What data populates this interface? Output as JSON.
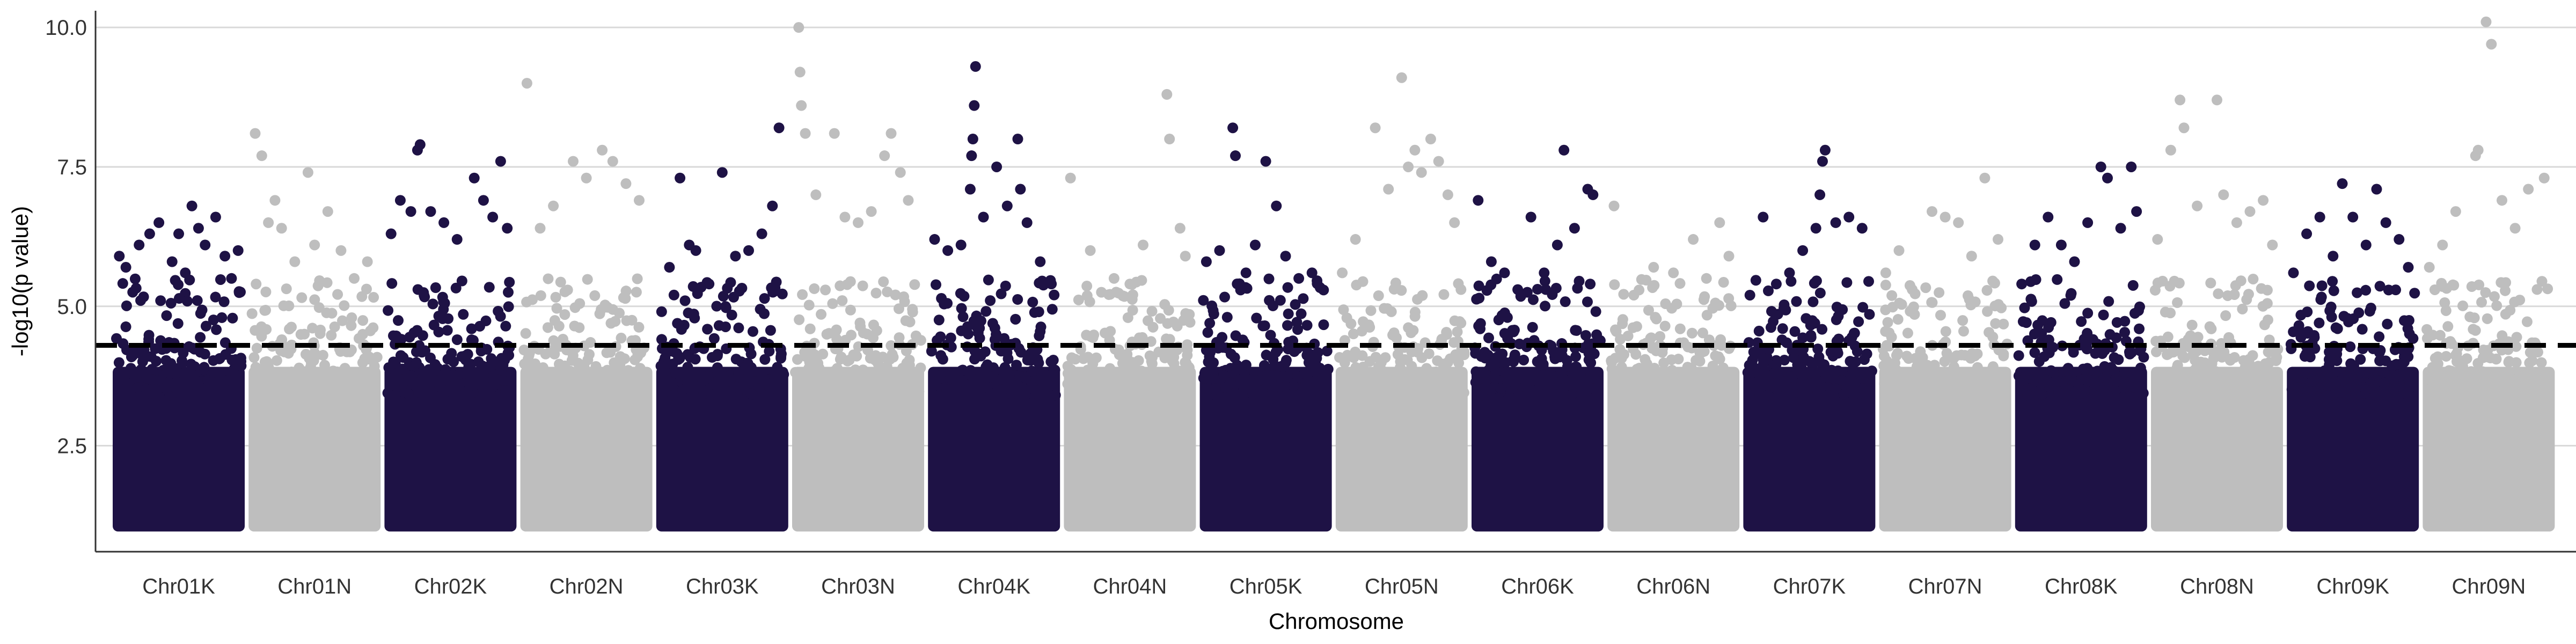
{
  "chart_data": {
    "type": "scatter",
    "title": "",
    "xlabel": "Chromosome",
    "ylabel": "-log10(p value)",
    "ylim": [
      0.6,
      10.3
    ],
    "yticks": [
      2.5,
      5.0,
      7.5,
      10.0
    ],
    "ytick_labels": [
      "2.5",
      "5.0",
      "7.5",
      "10.0"
    ],
    "categories": [
      "Chr01K",
      "Chr01N",
      "Chr02K",
      "Chr02N",
      "Chr03K",
      "Chr03N",
      "Chr04K",
      "Chr04N",
      "Chr05K",
      "Chr05N",
      "Chr06K",
      "Chr06N",
      "Chr07K",
      "Chr07N",
      "Chr08K",
      "Chr08N",
      "Chr09K",
      "Chr09N"
    ],
    "threshold": 4.3,
    "grid": "horizontal major gridlines only",
    "legend": "none",
    "colors": {
      "K": "#1e1245",
      "N": "#bebebe",
      "threshold": "#000000",
      "grid": "#d9d9d9"
    },
    "bulk_range": [
      1.0,
      4.3
    ],
    "peak_points": {
      "Chr01K": [
        [
          0.05,
          5.9
        ],
        [
          0.1,
          5.7
        ],
        [
          0.2,
          6.1
        ],
        [
          0.28,
          6.3
        ],
        [
          0.35,
          6.5
        ],
        [
          0.45,
          5.8
        ],
        [
          0.5,
          6.3
        ],
        [
          0.55,
          5.6
        ],
        [
          0.6,
          6.8
        ],
        [
          0.65,
          6.4
        ],
        [
          0.7,
          6.1
        ],
        [
          0.78,
          6.6
        ],
        [
          0.85,
          5.9
        ],
        [
          0.9,
          5.5
        ],
        [
          0.95,
          6.0
        ]
      ],
      "Chr01N": [
        [
          0.05,
          8.1
        ],
        [
          0.1,
          7.7
        ],
        [
          0.15,
          6.5
        ],
        [
          0.2,
          6.9
        ],
        [
          0.25,
          6.4
        ],
        [
          0.35,
          5.8
        ],
        [
          0.45,
          7.4
        ],
        [
          0.5,
          6.1
        ],
        [
          0.6,
          6.7
        ],
        [
          0.7,
          6.0
        ],
        [
          0.8,
          5.5
        ],
        [
          0.9,
          5.8
        ]
      ],
      "Chr02K": [
        [
          0.05,
          6.3
        ],
        [
          0.12,
          6.9
        ],
        [
          0.2,
          6.7
        ],
        [
          0.25,
          7.8
        ],
        [
          0.27,
          7.9
        ],
        [
          0.35,
          6.7
        ],
        [
          0.45,
          6.5
        ],
        [
          0.55,
          6.2
        ],
        [
          0.68,
          7.3
        ],
        [
          0.75,
          6.9
        ],
        [
          0.82,
          6.6
        ],
        [
          0.88,
          7.6
        ],
        [
          0.93,
          6.4
        ]
      ],
      "Chr02N": [
        [
          0.05,
          9.0
        ],
        [
          0.15,
          6.4
        ],
        [
          0.25,
          6.8
        ],
        [
          0.4,
          7.6
        ],
        [
          0.5,
          7.3
        ],
        [
          0.62,
          7.8
        ],
        [
          0.7,
          7.6
        ],
        [
          0.8,
          7.2
        ],
        [
          0.9,
          6.9
        ]
      ],
      "Chr03K": [
        [
          0.1,
          5.7
        ],
        [
          0.18,
          7.3
        ],
        [
          0.25,
          6.1
        ],
        [
          0.3,
          6.0
        ],
        [
          0.4,
          5.4
        ],
        [
          0.5,
          7.4
        ],
        [
          0.6,
          5.9
        ],
        [
          0.7,
          6.0
        ],
        [
          0.8,
          6.3
        ],
        [
          0.88,
          6.8
        ],
        [
          0.93,
          8.2
        ]
      ],
      "Chr03N": [
        [
          0.05,
          10.0
        ],
        [
          0.06,
          9.2
        ],
        [
          0.07,
          8.6
        ],
        [
          0.1,
          8.1
        ],
        [
          0.18,
          7.0
        ],
        [
          0.32,
          8.1
        ],
        [
          0.4,
          6.6
        ],
        [
          0.5,
          6.5
        ],
        [
          0.6,
          6.7
        ],
        [
          0.7,
          7.7
        ],
        [
          0.75,
          8.1
        ],
        [
          0.82,
          7.4
        ],
        [
          0.88,
          6.9
        ]
      ],
      "Chr04K": [
        [
          0.05,
          6.2
        ],
        [
          0.15,
          6.0
        ],
        [
          0.25,
          6.1
        ],
        [
          0.32,
          7.1
        ],
        [
          0.33,
          7.7
        ],
        [
          0.34,
          8.0
        ],
        [
          0.35,
          8.6
        ],
        [
          0.36,
          9.3
        ],
        [
          0.42,
          6.6
        ],
        [
          0.52,
          7.5
        ],
        [
          0.6,
          6.8
        ],
        [
          0.68,
          8.0
        ],
        [
          0.7,
          7.1
        ],
        [
          0.75,
          6.5
        ],
        [
          0.85,
          5.8
        ]
      ],
      "Chr04N": [
        [
          0.05,
          7.3
        ],
        [
          0.2,
          6.0
        ],
        [
          0.38,
          5.5
        ],
        [
          0.5,
          5.4
        ],
        [
          0.6,
          6.1
        ],
        [
          0.78,
          8.8
        ],
        [
          0.8,
          8.0
        ],
        [
          0.88,
          6.4
        ],
        [
          0.92,
          5.9
        ]
      ],
      "Chr05K": [
        [
          0.05,
          5.8
        ],
        [
          0.15,
          6.0
        ],
        [
          0.25,
          8.2
        ],
        [
          0.27,
          7.7
        ],
        [
          0.35,
          5.6
        ],
        [
          0.42,
          6.1
        ],
        [
          0.5,
          7.6
        ],
        [
          0.58,
          6.8
        ],
        [
          0.65,
          5.9
        ],
        [
          0.75,
          5.5
        ],
        [
          0.85,
          5.6
        ]
      ],
      "Chr05N": [
        [
          0.05,
          5.6
        ],
        [
          0.15,
          6.2
        ],
        [
          0.3,
          8.2
        ],
        [
          0.4,
          7.1
        ],
        [
          0.5,
          9.1
        ],
        [
          0.55,
          7.5
        ],
        [
          0.6,
          7.8
        ],
        [
          0.65,
          7.4
        ],
        [
          0.72,
          8.0
        ],
        [
          0.78,
          7.6
        ],
        [
          0.85,
          7.0
        ],
        [
          0.9,
          6.5
        ]
      ],
      "Chr06K": [
        [
          0.05,
          6.9
        ],
        [
          0.15,
          5.8
        ],
        [
          0.25,
          5.6
        ],
        [
          0.35,
          5.3
        ],
        [
          0.45,
          6.6
        ],
        [
          0.55,
          5.6
        ],
        [
          0.65,
          6.1
        ],
        [
          0.7,
          7.8
        ],
        [
          0.78,
          6.4
        ],
        [
          0.88,
          7.1
        ],
        [
          0.92,
          7.0
        ]
      ],
      "Chr06N": [
        [
          0.05,
          6.8
        ],
        [
          0.2,
          5.2
        ],
        [
          0.35,
          5.7
        ],
        [
          0.5,
          5.6
        ],
        [
          0.65,
          6.2
        ],
        [
          0.75,
          5.5
        ],
        [
          0.85,
          6.5
        ],
        [
          0.92,
          5.9
        ]
      ],
      "Chr07K": [
        [
          0.05,
          5.2
        ],
        [
          0.15,
          6.6
        ],
        [
          0.25,
          5.4
        ],
        [
          0.35,
          5.6
        ],
        [
          0.45,
          6.0
        ],
        [
          0.55,
          6.4
        ],
        [
          0.58,
          7.0
        ],
        [
          0.6,
          7.6
        ],
        [
          0.62,
          7.8
        ],
        [
          0.7,
          6.5
        ],
        [
          0.8,
          6.6
        ],
        [
          0.9,
          6.4
        ]
      ],
      "Chr07N": [
        [
          0.05,
          5.6
        ],
        [
          0.15,
          6.0
        ],
        [
          0.25,
          5.3
        ],
        [
          0.4,
          6.7
        ],
        [
          0.5,
          6.6
        ],
        [
          0.6,
          6.5
        ],
        [
          0.7,
          5.9
        ],
        [
          0.8,
          7.3
        ],
        [
          0.9,
          6.2
        ]
      ],
      "Chr08K": [
        [
          0.05,
          5.4
        ],
        [
          0.15,
          6.1
        ],
        [
          0.25,
          6.6
        ],
        [
          0.35,
          6.1
        ],
        [
          0.45,
          5.8
        ],
        [
          0.55,
          6.5
        ],
        [
          0.65,
          7.5
        ],
        [
          0.7,
          7.3
        ],
        [
          0.8,
          6.4
        ],
        [
          0.88,
          7.5
        ],
        [
          0.92,
          6.7
        ]
      ],
      "Chr08N": [
        [
          0.05,
          6.2
        ],
        [
          0.15,
          7.8
        ],
        [
          0.22,
          8.7
        ],
        [
          0.25,
          8.2
        ],
        [
          0.35,
          6.8
        ],
        [
          0.5,
          8.7
        ],
        [
          0.55,
          7.0
        ],
        [
          0.65,
          6.5
        ],
        [
          0.75,
          6.7
        ],
        [
          0.85,
          6.9
        ],
        [
          0.92,
          6.1
        ]
      ],
      "Chr09K": [
        [
          0.05,
          5.6
        ],
        [
          0.15,
          6.3
        ],
        [
          0.25,
          6.6
        ],
        [
          0.35,
          5.9
        ],
        [
          0.42,
          7.2
        ],
        [
          0.5,
          6.6
        ],
        [
          0.6,
          6.1
        ],
        [
          0.68,
          7.1
        ],
        [
          0.75,
          6.5
        ],
        [
          0.85,
          6.2
        ],
        [
          0.92,
          5.7
        ]
      ],
      "Chr09N": [
        [
          0.05,
          5.7
        ],
        [
          0.15,
          6.1
        ],
        [
          0.25,
          6.7
        ],
        [
          0.4,
          7.7
        ],
        [
          0.42,
          7.8
        ],
        [
          0.48,
          10.1
        ],
        [
          0.52,
          9.7
        ],
        [
          0.6,
          6.9
        ],
        [
          0.7,
          6.4
        ],
        [
          0.8,
          7.1
        ],
        [
          0.92,
          7.3
        ]
      ]
    }
  }
}
